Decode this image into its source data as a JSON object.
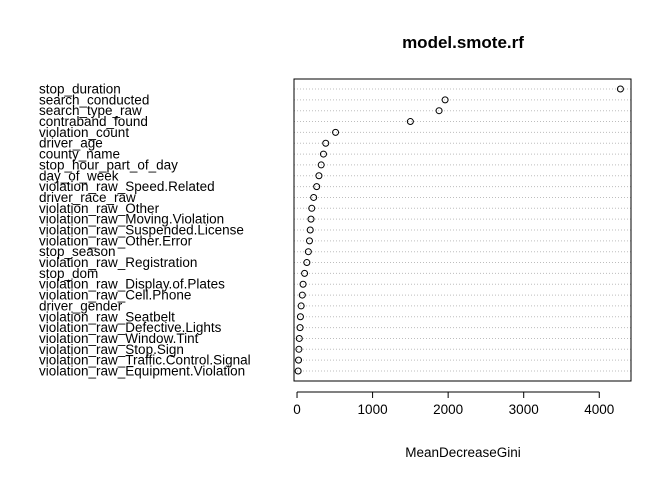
{
  "chart_data": {
    "type": "scatter",
    "title": "model.smote.rf",
    "xlabel": "MeanDecreaseGini",
    "xticks": [
      0,
      1000,
      2000,
      3000,
      4000
    ],
    "xlim": [
      -40,
      4420
    ],
    "grid": "dotted horizontal guide lines",
    "categories": [
      "stop_duration",
      "search_conducted",
      "search_type_raw",
      "contraband_found",
      "violation_count",
      "driver_age",
      "county_name",
      "stop_hour_part_of_day",
      "day_of_week",
      "violation_raw_Speed.Related",
      "driver_race_raw",
      "violation_raw_Other",
      "violation_raw_Moving.Violation",
      "violation_raw_Suspended.License",
      "violation_raw_Other.Error",
      "stop_season",
      "violation_raw_Registration",
      "stop_dom",
      "violation_raw_Display.of.Plates",
      "violation_raw_Cell.Phone",
      "driver_gender",
      "violation_raw_Seatbelt",
      "violation_raw_Defective.Lights",
      "violation_raw_Window.Tint",
      "violation_raw_Stop.Sign",
      "violation_raw_Traffic.Control.Signal",
      "violation_raw_Equipment.Violation"
    ],
    "values": [
      4280,
      1960,
      1880,
      1500,
      510,
      380,
      350,
      320,
      290,
      260,
      220,
      195,
      185,
      175,
      165,
      150,
      130,
      100,
      80,
      70,
      55,
      45,
      40,
      30,
      25,
      20,
      15
    ]
  }
}
